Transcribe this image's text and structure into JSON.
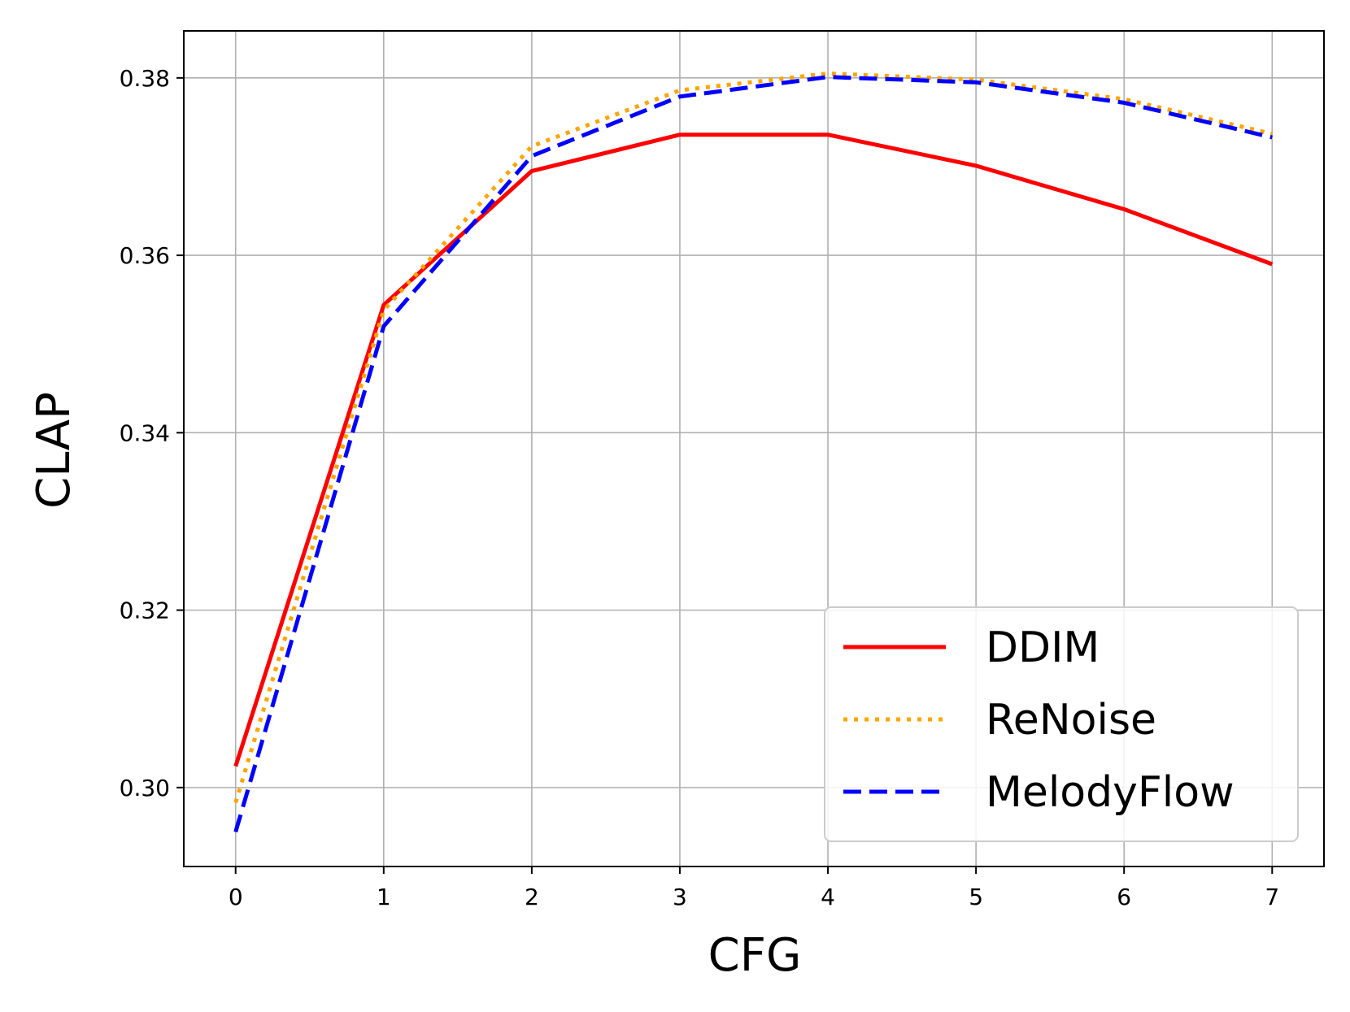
{
  "chart_data": {
    "type": "line",
    "title": "",
    "xlabel": "CFG",
    "ylabel": "CLAP",
    "xlim": [
      -0.35,
      7.35
    ],
    "ylim": [
      0.2911,
      0.3853
    ],
    "x_ticks": [
      "0",
      "1",
      "2",
      "3",
      "4",
      "5",
      "6",
      "7"
    ],
    "y_ticks": [
      "0.30",
      "0.32",
      "0.34",
      "0.36",
      "0.38"
    ],
    "grid": true,
    "legend_position": "lower-right",
    "x": [
      0,
      1,
      2,
      3,
      4,
      5,
      6,
      7
    ],
    "series": [
      {
        "name": "DDIM",
        "color": "#ff0000",
        "style": "solid",
        "values": [
          0.3024,
          0.3544,
          0.3695,
          0.3736,
          0.3736,
          0.3701,
          0.3652,
          0.359
        ]
      },
      {
        "name": "ReNoise",
        "color": "#ffa500",
        "style": "dotted",
        "values": [
          0.2983,
          0.3538,
          0.3723,
          0.3786,
          0.3805,
          0.3798,
          0.3776,
          0.3737
        ]
      },
      {
        "name": "MelodyFlow",
        "color": "#0000ff",
        "style": "dashed",
        "values": [
          0.295,
          0.352,
          0.3712,
          0.3779,
          0.3801,
          0.3795,
          0.3772,
          0.3733
        ]
      }
    ]
  }
}
